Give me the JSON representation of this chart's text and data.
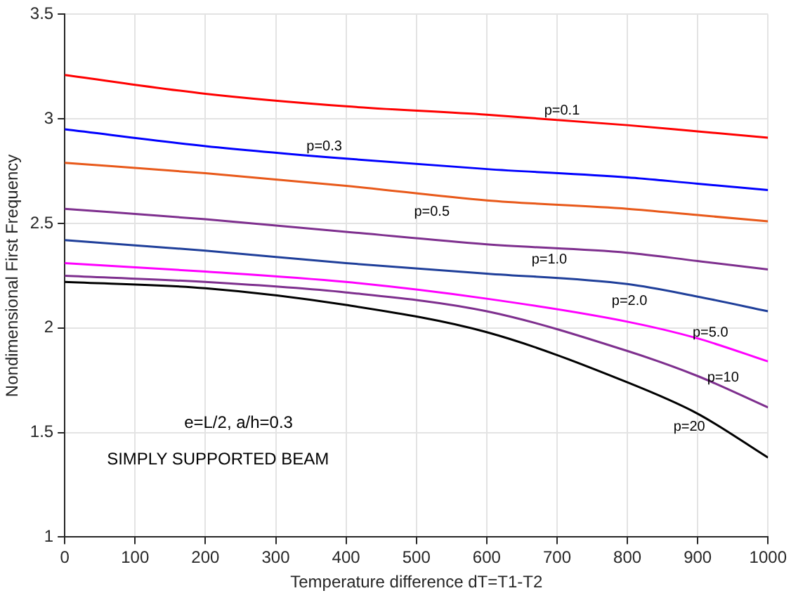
{
  "chart_data": {
    "type": "line",
    "xlabel": "Temperature difference dT=T1-T2",
    "ylabel": "Nondimensional First Frequency",
    "x": [
      0,
      200,
      400,
      600,
      800,
      900,
      1000
    ],
    "series": [
      {
        "name": "p=0.1",
        "color": "#ff0000",
        "values": [
          3.21,
          3.12,
          3.06,
          3.02,
          2.97,
          2.94,
          2.91
        ]
      },
      {
        "name": "p=0.3",
        "color": "#0000ff",
        "values": [
          2.95,
          2.87,
          2.81,
          2.76,
          2.72,
          2.69,
          2.66
        ]
      },
      {
        "name": "p=0.5",
        "color": "#e8591a",
        "values": [
          2.79,
          2.74,
          2.68,
          2.61,
          2.57,
          2.54,
          2.51
        ]
      },
      {
        "name": "p=1.0",
        "color": "#7e2f8e",
        "values": [
          2.57,
          2.52,
          2.46,
          2.4,
          2.36,
          2.32,
          2.28
        ]
      },
      {
        "name": "p=2.0",
        "color": "#1f3f9a",
        "values": [
          2.42,
          2.37,
          2.31,
          2.26,
          2.21,
          2.15,
          2.08
        ]
      },
      {
        "name": "p=5.0",
        "color": "#ff00ff",
        "values": [
          2.31,
          2.27,
          2.22,
          2.14,
          2.03,
          1.95,
          1.84
        ]
      },
      {
        "name": "p=10",
        "color": "#7e2f8e",
        "values": [
          2.25,
          2.22,
          2.17,
          2.08,
          1.89,
          1.77,
          1.62
        ]
      },
      {
        "name": "p=20",
        "color": "#000000",
        "values": [
          2.22,
          2.19,
          2.11,
          1.98,
          1.74,
          1.59,
          1.38
        ]
      }
    ],
    "xlim": [
      0,
      1000
    ],
    "xticks": [
      0,
      100,
      200,
      300,
      400,
      500,
      600,
      700,
      800,
      900,
      1000
    ],
    "ylim": [
      1,
      3.5
    ],
    "yticks": [
      1,
      1.5,
      2,
      2.5,
      3,
      3.5
    ],
    "grid": true,
    "line_style": "solid",
    "marker": "none",
    "legend": false,
    "annotations": [
      "e=L/2, a/h=0.3",
      "SIMPLY SUPPORTED BEAM"
    ]
  }
}
